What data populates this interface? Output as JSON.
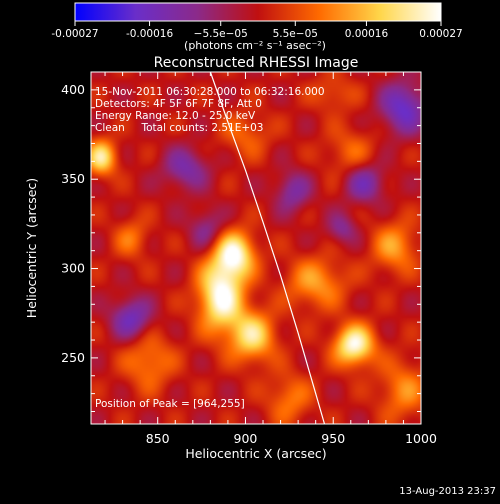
{
  "chart_data": {
    "type": "heatmap",
    "title": "Reconstructed RHESSI Image",
    "xlabel": "Heliocentric X (arcsec)",
    "ylabel": "Heliocentric Y (arcsec)",
    "xlim": [
      812,
      1000
    ],
    "ylim": [
      213,
      410
    ],
    "x_ticks": [
      850,
      900,
      950,
      1000
    ],
    "y_ticks": [
      250,
      300,
      350,
      400
    ],
    "colorbar": {
      "ticks": [
        "-0.00027",
        "-0.00016",
        "−5.5e−05",
        "5.5e−05",
        "0.00016",
        "0.00027"
      ],
      "tick_values": [
        -0.00027,
        -0.00016,
        -5.5e-05,
        5.5e-05,
        0.00016,
        0.00027
      ],
      "range": [
        -0.00027,
        0.00027
      ],
      "unit_label": "(photons cm⁻² s⁻¹ asec⁻²)",
      "colormap": [
        "#0000ff",
        "#6a2ec9",
        "#8b2a8a",
        "#c01010",
        "#ff6a00",
        "#ffd64a",
        "#ffffff"
      ]
    },
    "annotations": [
      "15-Nov-2011 06:30:28.000 to 06:32:16.000",
      "Detectors: 4F 5F 6F 7F 8F, Att 0",
      "Energy Range: 12.0 - 25.0 keV",
      "Clean     Total counts: 2.51E+03"
    ],
    "peak_label": "Position of Peak = [964,255]",
    "peak_position": [
      964,
      255
    ],
    "limb_curve": {
      "x": [
        880,
        890,
        900,
        910,
        920,
        930,
        940,
        945
      ],
      "y": [
        410,
        382,
        355,
        326,
        296,
        264,
        230,
        213
      ]
    },
    "sources": [
      {
        "x": 886,
        "y": 285,
        "sx": 9,
        "sy": 14,
        "amp": 0.00027
      },
      {
        "x": 894,
        "y": 308,
        "sx": 8,
        "sy": 9,
        "amp": 0.00024
      },
      {
        "x": 904,
        "y": 262,
        "sx": 9,
        "sy": 10,
        "amp": 0.0002
      },
      {
        "x": 962,
        "y": 257,
        "sx": 8,
        "sy": 8,
        "amp": 0.00026
      },
      {
        "x": 818,
        "y": 362,
        "sx": 6,
        "sy": 7,
        "amp": 0.00021
      },
      {
        "x": 940,
        "y": 292,
        "sx": 12,
        "sy": 10,
        "amp": 0.00013
      },
      {
        "x": 985,
        "y": 312,
        "sx": 9,
        "sy": 10,
        "amp": 0.00013
      },
      {
        "x": 990,
        "y": 232,
        "sx": 10,
        "sy": 12,
        "amp": 0.00011
      },
      {
        "x": 845,
        "y": 248,
        "sx": 10,
        "sy": 11,
        "amp": 0.00011
      },
      {
        "x": 925,
        "y": 227,
        "sx": 9,
        "sy": 10,
        "amp": 0.0001
      },
      {
        "x": 835,
        "y": 317,
        "sx": 7,
        "sy": 8,
        "amp": 9e-05
      },
      {
        "x": 900,
        "y": 375,
        "sx": 10,
        "sy": 9,
        "amp": 8e-05
      },
      {
        "x": 960,
        "y": 365,
        "sx": 10,
        "sy": 10,
        "amp": 8e-05
      },
      {
        "x": 950,
        "y": 398,
        "sx": 9,
        "sy": 7,
        "amp": 7e-05
      },
      {
        "x": 835,
        "y": 272,
        "sx": 8,
        "sy": 8,
        "amp": -0.00016
      },
      {
        "x": 866,
        "y": 356,
        "sx": 9,
        "sy": 8,
        "amp": -0.00013
      },
      {
        "x": 927,
        "y": 343,
        "sx": 7,
        "sy": 8,
        "amp": -0.00012
      },
      {
        "x": 990,
        "y": 390,
        "sx": 9,
        "sy": 10,
        "amp": -0.00018
      },
      {
        "x": 968,
        "y": 348,
        "sx": 8,
        "sy": 8,
        "amp": -0.00014
      },
      {
        "x": 878,
        "y": 322,
        "sx": 7,
        "sy": 8,
        "amp": -0.0001
      },
      {
        "x": 955,
        "y": 322,
        "sx": 6,
        "sy": 6,
        "amp": -0.0001
      }
    ]
  },
  "footer": {
    "timestamp": "13-Aug-2013 23:37"
  }
}
